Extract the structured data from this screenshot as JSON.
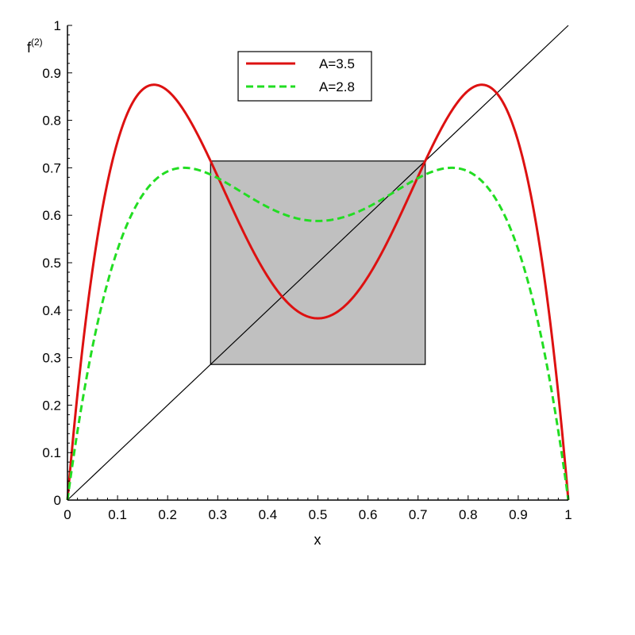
{
  "chart_data": {
    "type": "line",
    "xlabel": "x",
    "ylabel": "f",
    "ylabel_sup": "(2)",
    "xlim": [
      0,
      1
    ],
    "ylim": [
      0,
      1
    ],
    "x_ticks": [
      "0",
      "0.1",
      "0.2",
      "0.3",
      "0.4",
      "0.5",
      "0.6",
      "0.7",
      "0.8",
      "0.9",
      "1"
    ],
    "y_ticks": [
      "0",
      "0.1",
      "0.2",
      "0.3",
      "0.4",
      "0.5",
      "0.6",
      "0.7",
      "0.8",
      "0.9",
      "1"
    ],
    "grid": false,
    "legend_position": "top-center",
    "series": [
      {
        "name": "A=3.5",
        "color": "#dd1111",
        "style": "solid",
        "function": "second iterate of A*x*(1-x)",
        "parameter": 3.5,
        "x": [
          0,
          0.05,
          0.1,
          0.15,
          0.172,
          0.2,
          0.25,
          0.3,
          0.35,
          0.4,
          0.45,
          0.5,
          0.55,
          0.6,
          0.65,
          0.7,
          0.75,
          0.8,
          0.828,
          0.85,
          0.9,
          0.95,
          1
        ],
        "y": [
          0,
          0.538,
          0.822,
          0.87,
          0.875,
          0.869,
          0.801,
          0.692,
          0.573,
          0.472,
          0.405,
          0.383,
          0.405,
          0.472,
          0.573,
          0.692,
          0.801,
          0.869,
          0.875,
          0.87,
          0.822,
          0.538,
          0
        ]
      },
      {
        "name": "A=2.8",
        "color": "#22dd22",
        "style": "dashed",
        "function": "second iterate of A*x*(1-x)",
        "parameter": 2.8,
        "x": [
          0,
          0.05,
          0.1,
          0.15,
          0.2,
          0.232,
          0.25,
          0.3,
          0.35,
          0.4,
          0.45,
          0.5,
          0.55,
          0.6,
          0.65,
          0.7,
          0.75,
          0.768,
          0.8,
          0.85,
          0.9,
          0.95,
          1
        ],
        "y": [
          0,
          0.356,
          0.553,
          0.653,
          0.696,
          0.7,
          0.698,
          0.677,
          0.646,
          0.616,
          0.594,
          0.588,
          0.594,
          0.616,
          0.646,
          0.677,
          0.698,
          0.7,
          0.696,
          0.653,
          0.553,
          0.356,
          0
        ]
      }
    ],
    "reference_lines": [
      {
        "label": "y = x",
        "color": "#000000",
        "x": [
          0,
          1
        ],
        "y": [
          0,
          1
        ]
      }
    ],
    "shaded_box": {
      "x_range": [
        0.2857,
        0.7143
      ],
      "y_range": [
        0.2857,
        0.7143
      ],
      "fill": "#c0c0c0",
      "stroke": "#000000"
    }
  }
}
